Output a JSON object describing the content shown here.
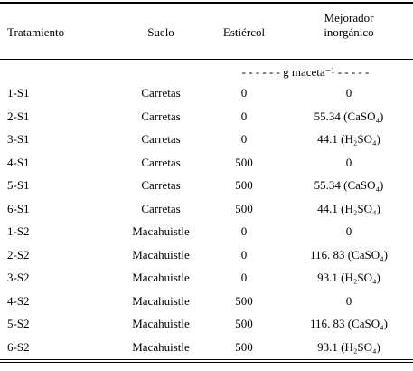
{
  "table": {
    "header": [
      "Tratamiento",
      "Suelo",
      "Estiércol",
      "Mejorador inorgánico"
    ],
    "units": "- - - - - -  g maceta⁻¹  - - - - -",
    "rows": [
      [
        "1-S1",
        "Carretas",
        "0",
        "0"
      ],
      [
        "2-S1",
        "Carretas",
        "0",
        "55.34 (CaSO₄)"
      ],
      [
        "3-S1",
        "Carretas",
        "0",
        "44.1 (H₂SO₄)"
      ],
      [
        "4-S1",
        "Carretas",
        "500",
        "0"
      ],
      [
        "5-S1",
        "Carretas",
        "500",
        "55.34 (CaSO₄)"
      ],
      [
        "6-S1",
        "Carretas",
        "500",
        "44.1 (H₂SO₄)"
      ],
      [
        "1-S2",
        "Macahuistle",
        "0",
        "0"
      ],
      [
        "2-S2",
        "Macahuistle",
        "0",
        "116. 83 (CaSO₄)"
      ],
      [
        "3-S2",
        "Macahuistle",
        "0",
        "93.1 (H₂SO₄)"
      ],
      [
        "4-S2",
        "Macahuistle",
        "500",
        "0"
      ],
      [
        "5-S2",
        "Macahuistle",
        "500",
        "116. 83 (CaSO₄)"
      ],
      [
        "6-S2",
        "Macahuistle",
        "500",
        "93.1 (H₂SO₄)"
      ]
    ]
  }
}
